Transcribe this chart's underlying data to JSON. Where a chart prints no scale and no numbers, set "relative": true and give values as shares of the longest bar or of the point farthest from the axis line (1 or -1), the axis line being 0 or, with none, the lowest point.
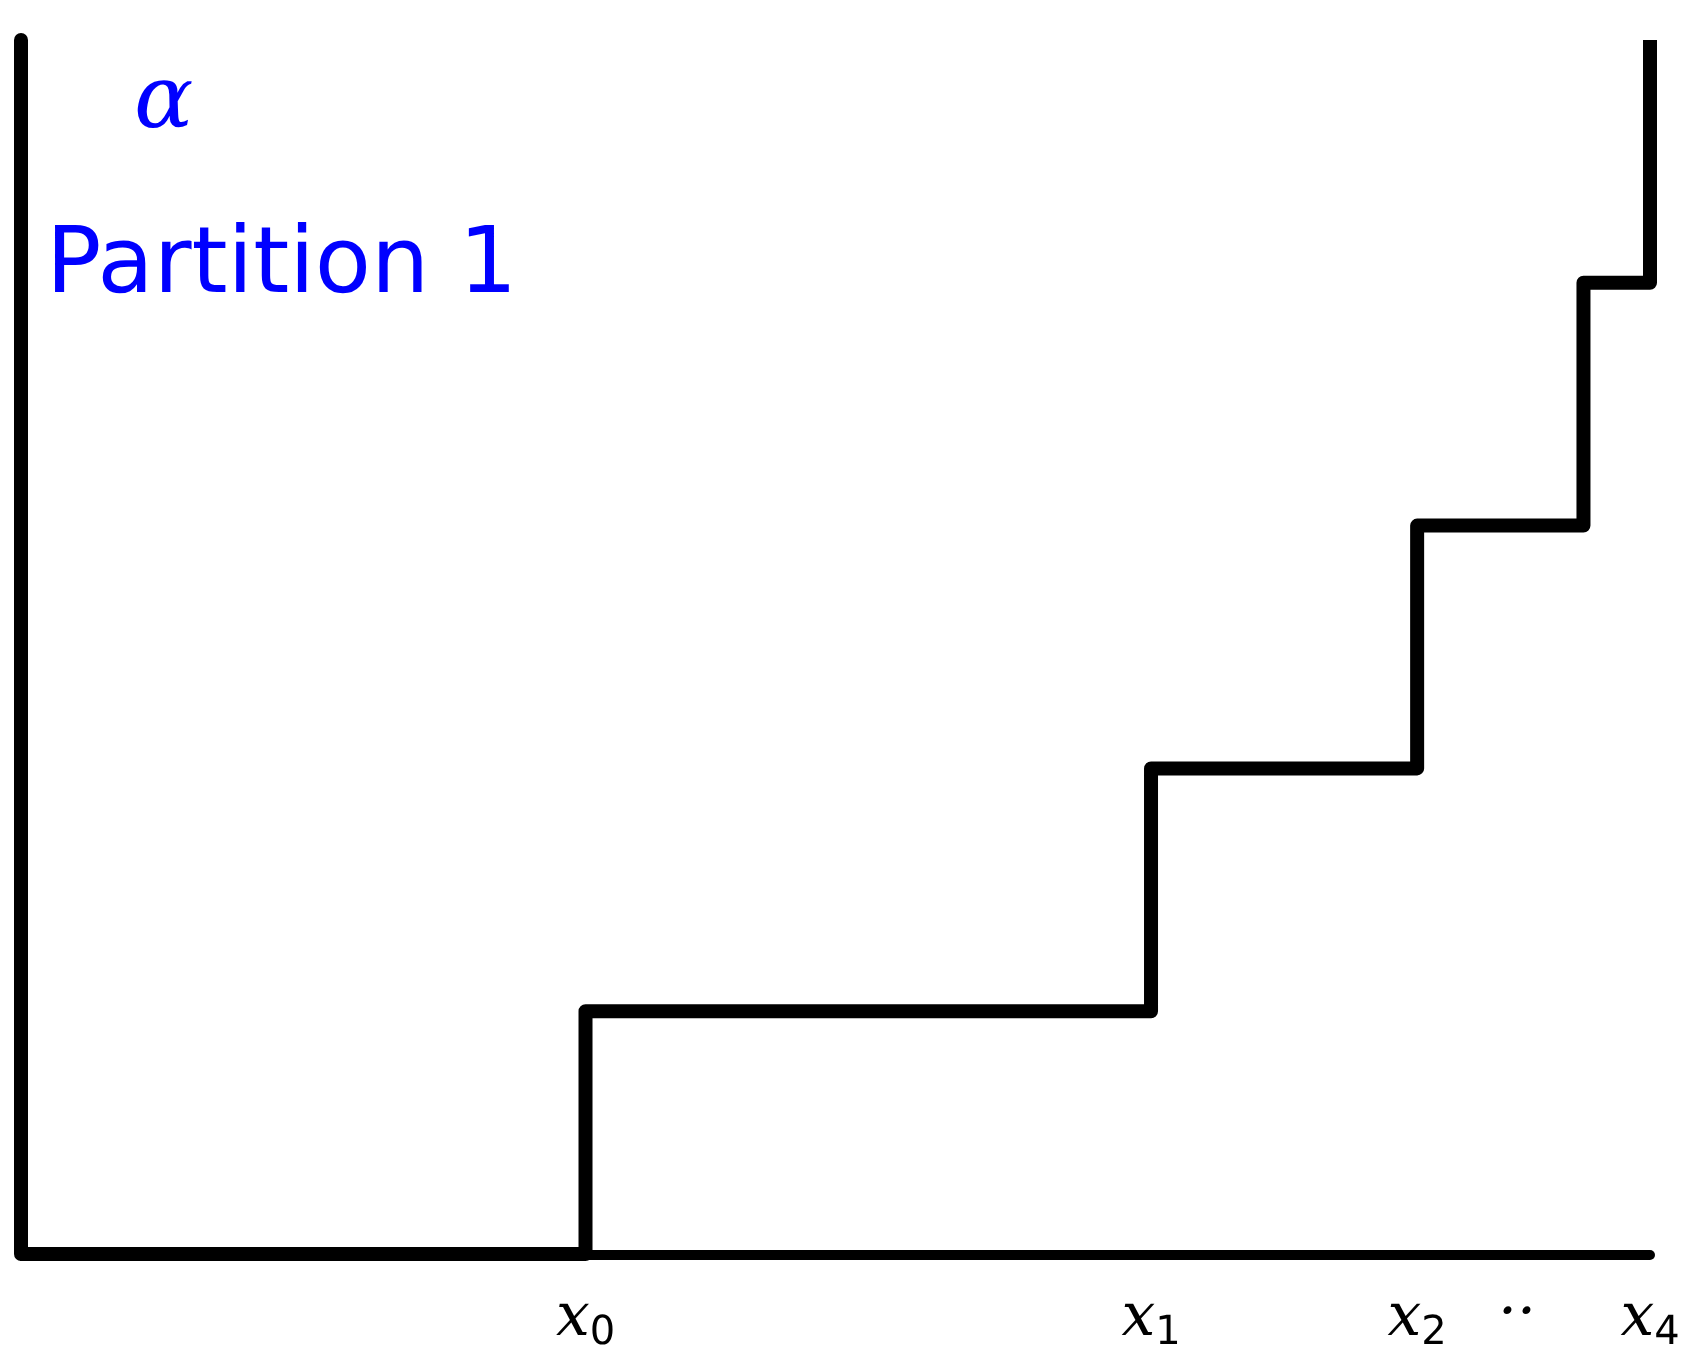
{
  "chart_data": {
    "type": "step",
    "title": "Partition 1",
    "ylabel": "α",
    "relative": true,
    "categories": [
      null,
      null,
      null,
      null,
      null,
      null,
      null,
      null,
      null,
      null,
      null,
      null,
      null,
      null,
      null,
      null,
      null,
      "x$_{0}$",
      null,
      null,
      null,
      null,
      null,
      null,
      null,
      null,
      null,
      null,
      null,
      null,
      null,
      null,
      null,
      null,
      "x$_{1}$",
      null,
      null,
      null,
      null,
      null,
      null,
      null,
      "x$_{2}$",
      null,
      null,
      "··",
      null,
      null,
      null,
      "x$_{4}$"
    ],
    "series": [
      {
        "color": "#000000",
        "values": [
          0,
          0,
          0,
          0,
          0,
          0,
          0,
          0,
          0,
          0,
          0,
          0,
          0,
          0,
          0,
          0,
          0,
          0.2,
          0.2,
          0.2,
          0.2,
          0.2,
          0.2,
          0.2,
          0.2,
          0.2,
          0.2,
          0.2,
          0.2,
          0.2,
          0.2,
          0.2,
          0.2,
          0.2,
          0.4,
          0.4,
          0.4,
          0.4,
          0.4,
          0.4,
          0.4,
          0.4,
          0.6,
          0.6,
          0.6,
          0.6,
          0.6,
          0.8,
          0.8,
          1.0
        ]
      }
    ],
    "tick_labels": "x"
  }
}
